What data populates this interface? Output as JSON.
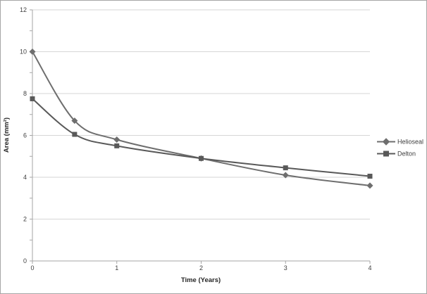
{
  "figure": {
    "background": "#ffffff",
    "border_color": "#a6a6a6"
  },
  "chart_data": {
    "type": "line",
    "title": "",
    "xlabel": "Time (Years)",
    "ylabel": "Area (mm²)",
    "x": [
      0,
      0.5,
      1,
      2,
      3,
      4
    ],
    "xlim": [
      0,
      4
    ],
    "ylim": [
      0,
      12
    ],
    "x_ticks": [
      0,
      1,
      2,
      3,
      4
    ],
    "y_ticks": [
      0,
      2,
      4,
      6,
      8,
      10,
      12
    ],
    "y_minor_tick_step": 1,
    "grid": "horizontal",
    "line_style": "smooth",
    "legend_position": "right",
    "series": [
      {
        "name": "Helioseal",
        "marker": "diamond",
        "color": "#6e6e6e",
        "values": [
          10.0,
          6.7,
          5.8,
          4.9,
          4.1,
          3.6
        ]
      },
      {
        "name": "Delton",
        "marker": "square",
        "color": "#595959",
        "values": [
          7.75,
          6.05,
          5.5,
          4.9,
          4.45,
          4.05
        ]
      }
    ],
    "colors": {
      "gridline": "#d6d6d6",
      "axis": "#a6a6a6",
      "tick_label": "#404040",
      "axis_title": "#262626"
    }
  }
}
